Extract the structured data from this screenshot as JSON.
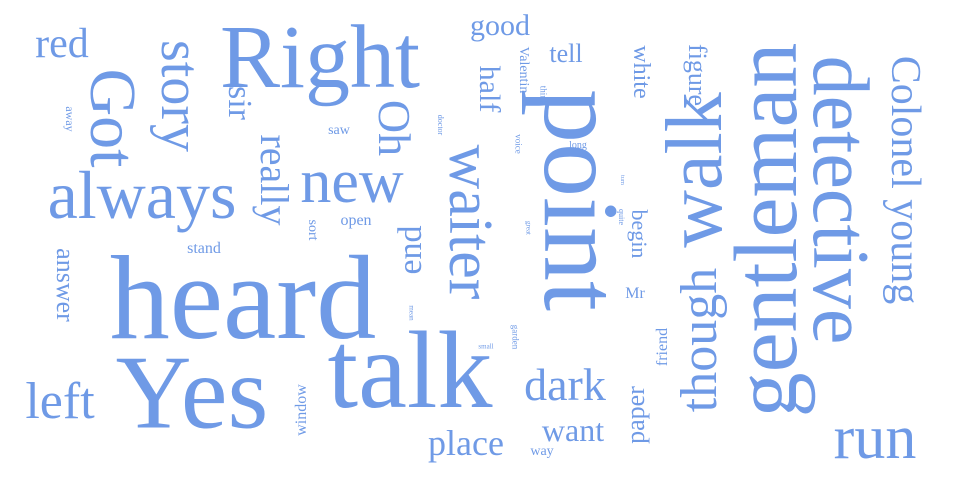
{
  "color": "#6f9ae6",
  "words": [
    {
      "text": "heard"
    },
    {
      "text": "Yes"
    },
    {
      "text": "talk"
    },
    {
      "text": "point"
    },
    {
      "text": "Right"
    },
    {
      "text": "gentleman"
    },
    {
      "text": "detective"
    },
    {
      "text": "always"
    },
    {
      "text": "walk"
    },
    {
      "text": "Got"
    },
    {
      "text": "waiter"
    },
    {
      "text": "story"
    },
    {
      "text": "new"
    },
    {
      "text": "Colonel young"
    },
    {
      "text": "run"
    },
    {
      "text": "though"
    },
    {
      "text": "left"
    },
    {
      "text": "dark"
    },
    {
      "text": "Oh"
    },
    {
      "text": "red"
    },
    {
      "text": "really"
    },
    {
      "text": "place"
    },
    {
      "text": "end"
    },
    {
      "text": "want"
    },
    {
      "text": "sir"
    },
    {
      "text": "half"
    },
    {
      "text": "good"
    },
    {
      "text": "answer"
    },
    {
      "text": "tell"
    },
    {
      "text": "paper"
    },
    {
      "text": "figure"
    },
    {
      "text": "white"
    },
    {
      "text": "begin"
    },
    {
      "text": "window"
    },
    {
      "text": "friend"
    },
    {
      "text": "Mr"
    },
    {
      "text": "open"
    },
    {
      "text": "stand"
    },
    {
      "text": "saw"
    },
    {
      "text": "sort"
    },
    {
      "text": "way"
    },
    {
      "text": "Valentin"
    },
    {
      "text": "away"
    },
    {
      "text": "long"
    },
    {
      "text": "think"
    },
    {
      "text": "voice"
    },
    {
      "text": "doctor"
    },
    {
      "text": "garden"
    },
    {
      "text": "mean"
    },
    {
      "text": "quite"
    },
    {
      "text": "great"
    },
    {
      "text": "small"
    },
    {
      "text": "turn"
    }
  ]
}
